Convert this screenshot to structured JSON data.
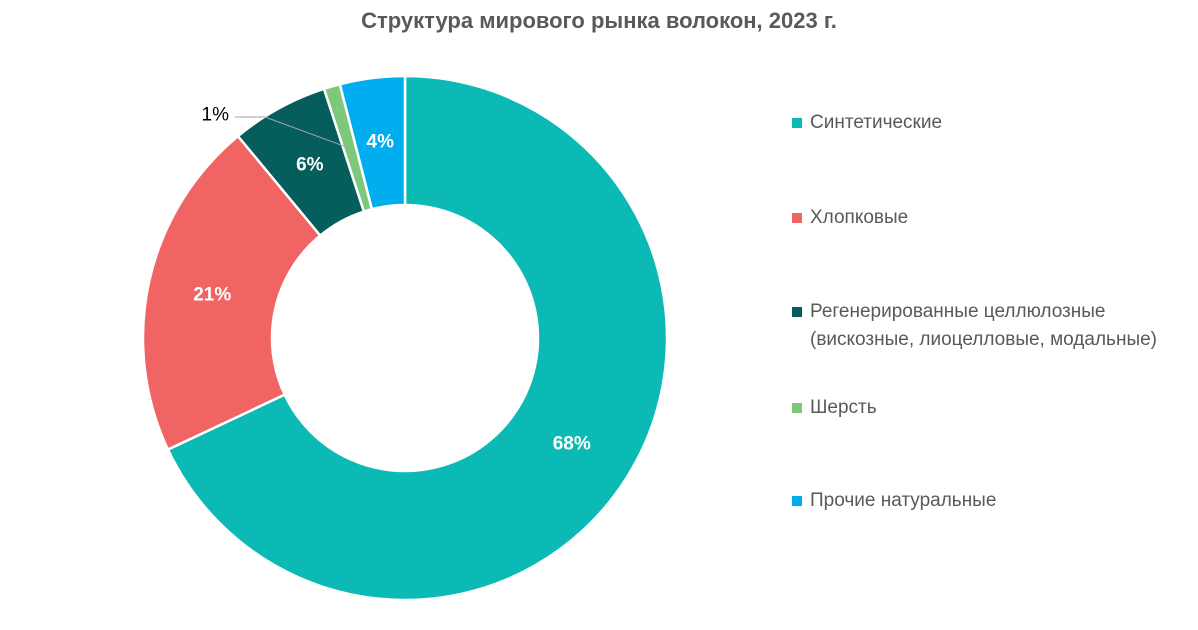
{
  "chart_data": {
    "type": "pie",
    "title": "Структура мирового рынка волокон, 2023 г.",
    "categories": [
      "Синтетические",
      "Хлопковые",
      "Регенерированные целлюлозные (вискозные, лиоцелловые, модальные)",
      "Шерсть",
      "Прочие натуральные"
    ],
    "values": [
      68,
      21,
      6,
      1,
      4
    ],
    "data_labels": [
      "68%",
      "21%",
      "6%",
      "1%",
      "4%"
    ],
    "colors": [
      "#0BBAB5",
      "#F06464",
      "#055E5B",
      "#7DC87A",
      "#00AEEF"
    ],
    "legend_position": "right"
  }
}
